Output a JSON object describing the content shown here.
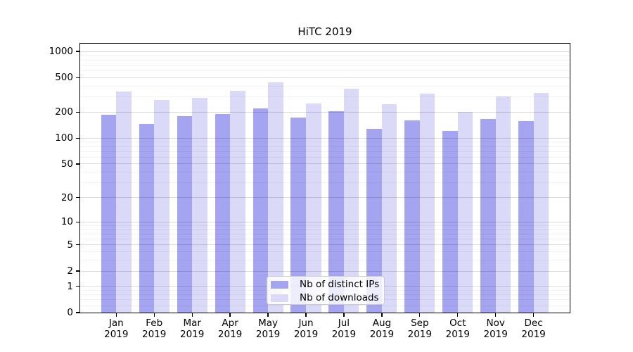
{
  "chart_data": {
    "type": "bar",
    "title": "HiTC 2019",
    "categories": [
      "Jan",
      "Feb",
      "Mar",
      "Apr",
      "May",
      "Jun",
      "Jul",
      "Aug",
      "Sep",
      "Oct",
      "Nov",
      "Dec"
    ],
    "category_year": "2019",
    "series": [
      {
        "key": "distinct-ips",
        "name": "Nb of distinct IPs",
        "color": "#a4a4f0",
        "values": [
          185,
          146,
          181,
          189,
          221,
          173,
          203,
          128,
          161,
          121,
          166,
          157
        ]
      },
      {
        "key": "downloads",
        "name": "Nb of downloads",
        "color": "#dadaf8",
        "values": [
          345,
          277,
          291,
          350,
          440,
          251,
          371,
          245,
          324,
          201,
          304,
          334
        ]
      }
    ],
    "yscale": "log1p",
    "ylim": [
      0,
      1228
    ],
    "y_ticks": [
      0,
      1,
      2,
      5,
      10,
      20,
      50,
      100,
      200,
      500,
      1000
    ],
    "y_minor_gridlines": [
      0.2,
      0.4,
      0.6,
      0.8,
      3,
      4,
      6,
      7,
      8,
      9,
      30,
      40,
      60,
      70,
      80,
      90,
      300,
      400,
      600,
      700,
      800,
      900
    ],
    "grid": true,
    "legend_position": "lower center"
  }
}
